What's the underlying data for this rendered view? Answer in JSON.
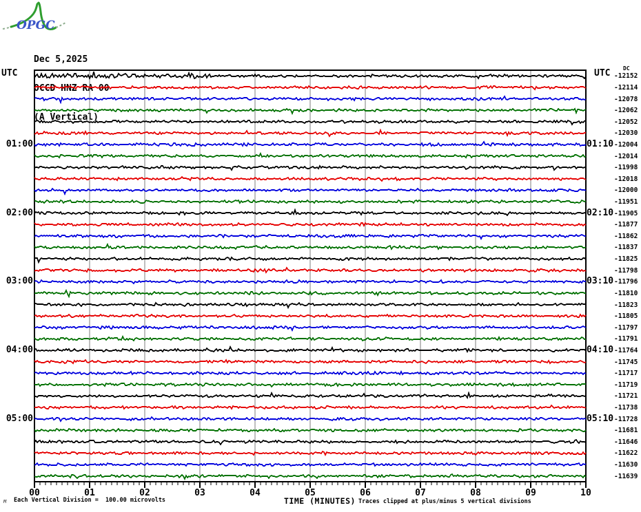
{
  "logo": {
    "text": "OPGC",
    "curve_color": "#2f9e2f",
    "dash_color": "#8fae8f",
    "text_color": "#3a55c8"
  },
  "header": {
    "date": "Dec 5,2025",
    "station": "OCCD HNZ RA 00",
    "component": "(A Vertical)"
  },
  "axes": {
    "left_header": "UTC",
    "right_header": "UTC",
    "dc_label": "DC",
    "left_hour_labels": [
      {
        "row": 7,
        "label": "01:00"
      },
      {
        "row": 13,
        "label": "02:00"
      },
      {
        "row": 19,
        "label": "03:00"
      },
      {
        "row": 25,
        "label": "04:00"
      },
      {
        "row": 31,
        "label": "05:00"
      }
    ],
    "right_hour_labels": [
      {
        "row": 7,
        "label": "01:10"
      },
      {
        "row": 13,
        "label": "02:10"
      },
      {
        "row": 19,
        "label": "03:10"
      },
      {
        "row": 25,
        "label": "04:10"
      },
      {
        "row": 31,
        "label": "05:10"
      }
    ]
  },
  "footer": {
    "corner_mark": "M",
    "division_note": "Each Vertical Division =  100.00 microvolts",
    "xlabel": "TIME (MINUTES)",
    "clip_note": "Traces clipped at plus/minus 5 vertical divisions"
  },
  "chart_data": {
    "type": "line",
    "subtype": "helicorder-seismogram",
    "title": "OCCD HNZ RA 00 (A Vertical) Dec 5,2025",
    "xlabel": "TIME (MINUTES)",
    "x_range_minutes": [
      0,
      10
    ],
    "x_ticks": [
      "00",
      "01",
      "02",
      "03",
      "04",
      "05",
      "06",
      "07",
      "08",
      "09",
      "10"
    ],
    "minutes_per_line": 10,
    "grid": "vertical-only",
    "grid_color": "#7d7d7d",
    "trace_colors": {
      "black": "#000000",
      "red": "#e60000",
      "blue": "#0000dd",
      "green": "#007000"
    },
    "vertical_division_microvolts": 100.0,
    "clip_divisions": 5,
    "rows": [
      {
        "start_utc": "00:00",
        "end_utc": "00:10",
        "color": "black",
        "dc": -12152
      },
      {
        "start_utc": "00:10",
        "end_utc": "00:20",
        "color": "red",
        "dc": -12114
      },
      {
        "start_utc": "00:20",
        "end_utc": "00:30",
        "color": "blue",
        "dc": -12078
      },
      {
        "start_utc": "00:30",
        "end_utc": "00:40",
        "color": "green",
        "dc": -12062
      },
      {
        "start_utc": "00:40",
        "end_utc": "00:50",
        "color": "black",
        "dc": -12052
      },
      {
        "start_utc": "00:50",
        "end_utc": "01:00",
        "color": "red",
        "dc": -12030
      },
      {
        "start_utc": "01:00",
        "end_utc": "01:10",
        "color": "blue",
        "dc": -12004
      },
      {
        "start_utc": "01:10",
        "end_utc": "01:20",
        "color": "green",
        "dc": -12014
      },
      {
        "start_utc": "01:20",
        "end_utc": "01:30",
        "color": "black",
        "dc": -11998
      },
      {
        "start_utc": "01:30",
        "end_utc": "01:40",
        "color": "red",
        "dc": -12018
      },
      {
        "start_utc": "01:40",
        "end_utc": "01:50",
        "color": "blue",
        "dc": -12000
      },
      {
        "start_utc": "01:50",
        "end_utc": "02:00",
        "color": "green",
        "dc": -11951
      },
      {
        "start_utc": "02:00",
        "end_utc": "02:10",
        "color": "black",
        "dc": -11905
      },
      {
        "start_utc": "02:10",
        "end_utc": "02:20",
        "color": "red",
        "dc": -11877
      },
      {
        "start_utc": "02:20",
        "end_utc": "02:30",
        "color": "blue",
        "dc": -11862
      },
      {
        "start_utc": "02:30",
        "end_utc": "02:40",
        "color": "green",
        "dc": -11837
      },
      {
        "start_utc": "02:40",
        "end_utc": "02:50",
        "color": "black",
        "dc": -11825
      },
      {
        "start_utc": "02:50",
        "end_utc": "03:00",
        "color": "red",
        "dc": -11798
      },
      {
        "start_utc": "03:00",
        "end_utc": "03:10",
        "color": "blue",
        "dc": -11796
      },
      {
        "start_utc": "03:10",
        "end_utc": "03:20",
        "color": "green",
        "dc": -11810
      },
      {
        "start_utc": "03:20",
        "end_utc": "03:30",
        "color": "black",
        "dc": -11823
      },
      {
        "start_utc": "03:30",
        "end_utc": "03:40",
        "color": "red",
        "dc": -11805
      },
      {
        "start_utc": "03:40",
        "end_utc": "03:50",
        "color": "blue",
        "dc": -11797
      },
      {
        "start_utc": "03:50",
        "end_utc": "04:00",
        "color": "green",
        "dc": -11791
      },
      {
        "start_utc": "04:00",
        "end_utc": "04:10",
        "color": "black",
        "dc": -11764
      },
      {
        "start_utc": "04:10",
        "end_utc": "04:20",
        "color": "red",
        "dc": -11745
      },
      {
        "start_utc": "04:20",
        "end_utc": "04:30",
        "color": "blue",
        "dc": -11717
      },
      {
        "start_utc": "04:30",
        "end_utc": "04:40",
        "color": "green",
        "dc": -11719
      },
      {
        "start_utc": "04:40",
        "end_utc": "04:50",
        "color": "black",
        "dc": -11721
      },
      {
        "start_utc": "04:50",
        "end_utc": "05:00",
        "color": "red",
        "dc": -11738
      },
      {
        "start_utc": "05:00",
        "end_utc": "05:10",
        "color": "blue",
        "dc": -11728
      },
      {
        "start_utc": "05:10",
        "end_utc": "05:20",
        "color": "green",
        "dc": -11681
      },
      {
        "start_utc": "05:20",
        "end_utc": "05:30",
        "color": "black",
        "dc": -11646
      },
      {
        "start_utc": "05:30",
        "end_utc": "05:40",
        "color": "red",
        "dc": -11622
      },
      {
        "start_utc": "05:40",
        "end_utc": "05:50",
        "color": "blue",
        "dc": -11630
      },
      {
        "start_utc": "05:50",
        "end_utc": "06:00",
        "color": "green",
        "dc": -11639
      }
    ]
  }
}
